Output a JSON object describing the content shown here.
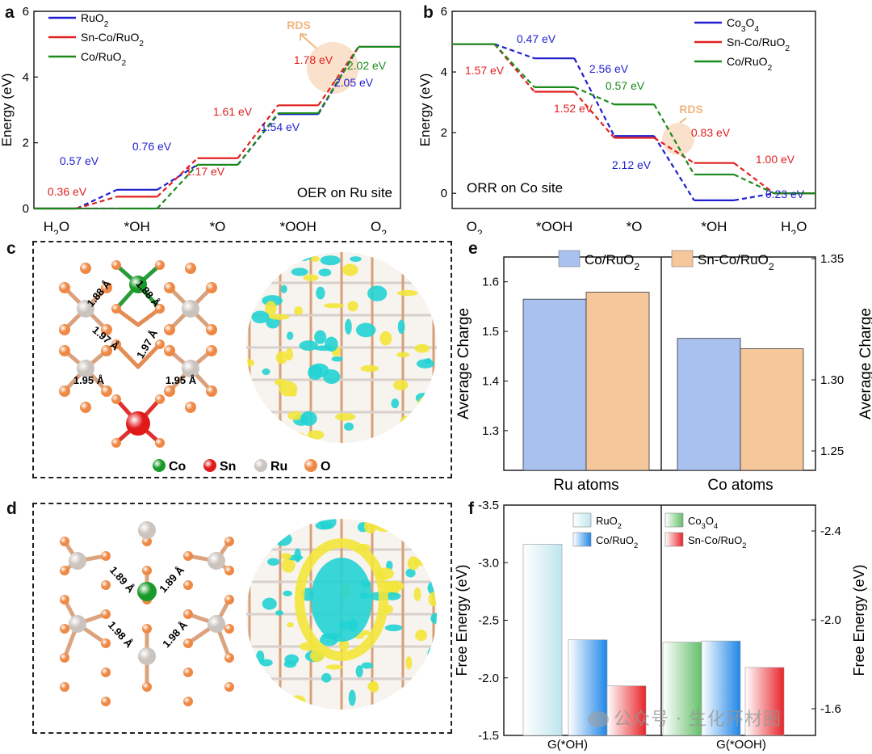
{
  "panel_labels": {
    "a": "a",
    "b": "b",
    "c": "c",
    "d": "d",
    "e": "e",
    "f": "f"
  },
  "colors": {
    "ruo2": "#1f1fd0",
    "sncoruo2": "#e0201f",
    "coruo2": "#1a8a1a",
    "rds": "#f5c9a3",
    "bar_blue": "#a9c1ef",
    "bar_orange": "#f6c79b",
    "co_atom": "#1a9a2a",
    "sn_atom": "#e01a1a",
    "ru_atom": "#cbc3be",
    "o_atom": "#ee8844",
    "iso_cyan": "#22d3d3",
    "iso_yellow": "#f2e63a"
  },
  "chart_data": [
    {
      "id": "a",
      "type": "line",
      "title": "OER on Ru site",
      "ylabel": "Energy (eV)",
      "ylim": [
        0,
        6
      ],
      "yticks": [
        "0",
        "2",
        "4",
        "6"
      ],
      "steps": [
        "H2O",
        "*OH",
        "*O",
        "*OOH",
        "O2"
      ],
      "series": [
        {
          "name": "RuO2",
          "values": [
            0,
            0.57,
            1.33,
            2.87,
            4.92
          ]
        },
        {
          "name": "Sn-Co/RuO2",
          "values": [
            0,
            0.36,
            1.53,
            3.14,
            4.92
          ]
        },
        {
          "name": "Co/RuO2",
          "values": [
            0,
            0.0,
            1.33,
            2.9,
            4.92
          ]
        }
      ],
      "annotations": [
        {
          "text": "0.57 eV",
          "series": "RuO2"
        },
        {
          "text": "0.36 eV",
          "series": "Sn-Co/RuO2"
        },
        {
          "text": "0.76 eV",
          "series": "RuO2"
        },
        {
          "text": "1.17 eV",
          "series": "Sn-Co/RuO2"
        },
        {
          "text": "1.61 eV",
          "series": "Sn-Co/RuO2"
        },
        {
          "text": "1.54 eV",
          "series": "RuO2"
        },
        {
          "text": "1.78 eV",
          "series": "Sn-Co/RuO2"
        },
        {
          "text": "2.02 eV",
          "series": "Co/RuO2"
        },
        {
          "text": "2.05 eV",
          "series": "RuO2"
        }
      ],
      "rds_label": "RDS"
    },
    {
      "id": "b",
      "type": "line",
      "title": "ORR on Co site",
      "ylabel": "Energy (eV)",
      "ylim": [
        -0.5,
        6
      ],
      "yticks": [
        "0",
        "2",
        "4",
        "6"
      ],
      "steps": [
        "O2",
        "*OOH",
        "*O",
        "*OH",
        "H2O"
      ],
      "series": [
        {
          "name": "Co3O4",
          "values": [
            4.92,
            4.45,
            1.89,
            -0.23,
            0
          ]
        },
        {
          "name": "Sn-Co/RuO2",
          "values": [
            4.92,
            3.35,
            1.83,
            1.0,
            0
          ]
        },
        {
          "name": "Co/RuO2",
          "values": [
            4.92,
            3.5,
            2.93,
            0.62,
            0
          ]
        }
      ],
      "annotations": [
        {
          "text": "0.47 eV",
          "series": "Co3O4"
        },
        {
          "text": "1.57 eV",
          "series": "Sn-Co/RuO2"
        },
        {
          "text": "2.56 eV",
          "series": "Co3O4"
        },
        {
          "text": "0.57 eV",
          "series": "Co/RuO2"
        },
        {
          "text": "1.52 eV",
          "series": "Sn-Co/RuO2"
        },
        {
          "text": "0.83 eV",
          "series": "Sn-Co/RuO2"
        },
        {
          "text": "1.00 eV",
          "series": "Sn-Co/RuO2"
        },
        {
          "text": "2.12 eV",
          "series": "Co3O4"
        },
        {
          "text": "0.23 eV",
          "series": "Co3O4"
        }
      ],
      "rds_label": "RDS"
    },
    {
      "id": "e",
      "type": "bar",
      "categories": [
        "Ru atoms",
        "Co atoms"
      ],
      "series": [
        {
          "name": "Co/RuO2",
          "values": [
            1.565,
            1.486
          ]
        },
        {
          "name": "Sn-Co/RuO2",
          "values": [
            1.579,
            1.465
          ]
        }
      ],
      "ylabel_left": "Average Charge",
      "ylabel_right": "Average Charge",
      "ylim_left": [
        1.22,
        1.65
      ],
      "yticks_left": [
        "1.3",
        "1.4",
        "1.5",
        "1.6"
      ],
      "yticks_right": [
        "1.25",
        "1.30",
        "1.35"
      ]
    },
    {
      "id": "f",
      "type": "bar",
      "categories": [
        "G(*OH)",
        "G(*OOH)"
      ],
      "groups": [
        {
          "category": "G(*OH)",
          "series": [
            {
              "name": "RuO2",
              "value": -3.16
            },
            {
              "name": "Co/RuO2",
              "value": -2.33
            },
            {
              "name": "Sn-Co/RuO2",
              "value": -1.93
            }
          ]
        },
        {
          "category": "G(*OOH)",
          "series": [
            {
              "name": "Co3O4",
              "value": -2.31
            },
            {
              "name": "Co/RuO2",
              "value": -2.32
            },
            {
              "name": "Sn-Co/RuO2",
              "value": -2.09
            }
          ]
        }
      ],
      "ylabel_left": "Free Energy (eV)",
      "ylabel_right": "Free Energy (eV)",
      "ylim_left": [
        -1.5,
        -3.5
      ],
      "yticks_left": [
        "-3.5",
        "-3.0",
        "-2.5",
        "-2.0",
        "-1.5"
      ],
      "yticks_right": [
        "-2.4",
        "-2.0",
        "-1.6"
      ],
      "legend_left": [
        "RuO2",
        "Co/RuO2"
      ],
      "legend_right": [
        "Co3O4",
        "Sn-Co/RuO2"
      ]
    }
  ],
  "structure_c": {
    "bonds": [
      "1.88 Å",
      "1.88 Å",
      "1.97 Å",
      "1.97 Å",
      "1.95 Å",
      "1.95 Å"
    ],
    "legend": [
      "Co",
      "Sn",
      "Ru",
      "O"
    ]
  },
  "structure_d": {
    "bonds": [
      "1.89 Å",
      "1.89 Å",
      "1.98 Å",
      "1.98 Å"
    ]
  },
  "watermark": "公众号 · 生化环材圈"
}
